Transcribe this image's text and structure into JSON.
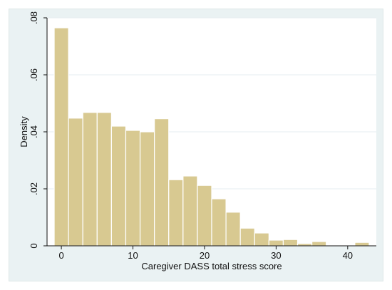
{
  "chart_data": {
    "type": "bar",
    "subtype": "histogram",
    "xlabel": "Caregiver DASS total stress score",
    "ylabel": "Density",
    "bin_width": 2,
    "bins": [
      {
        "x0": -1,
        "x1": 1,
        "density": 0.0765
      },
      {
        "x0": 1,
        "x1": 3,
        "density": 0.0448
      },
      {
        "x0": 3,
        "x1": 5,
        "density": 0.0468
      },
      {
        "x0": 5,
        "x1": 7,
        "density": 0.0468
      },
      {
        "x0": 7,
        "x1": 9,
        "density": 0.042
      },
      {
        "x0": 9,
        "x1": 11,
        "density": 0.0405
      },
      {
        "x0": 11,
        "x1": 13,
        "density": 0.04
      },
      {
        "x0": 13,
        "x1": 15,
        "density": 0.0446
      },
      {
        "x0": 15,
        "x1": 17,
        "density": 0.0232
      },
      {
        "x0": 17,
        "x1": 19,
        "density": 0.0245
      },
      {
        "x0": 19,
        "x1": 21,
        "density": 0.0212
      },
      {
        "x0": 21,
        "x1": 23,
        "density": 0.0165
      },
      {
        "x0": 23,
        "x1": 25,
        "density": 0.0118
      },
      {
        "x0": 25,
        "x1": 27,
        "density": 0.0062
      },
      {
        "x0": 27,
        "x1": 29,
        "density": 0.0045
      },
      {
        "x0": 29,
        "x1": 31,
        "density": 0.002
      },
      {
        "x0": 31,
        "x1": 33,
        "density": 0.0022
      },
      {
        "x0": 33,
        "x1": 35,
        "density": 0.0008
      },
      {
        "x0": 35,
        "x1": 37,
        "density": 0.0015
      },
      {
        "x0": 37,
        "x1": 39,
        "density": 0.0
      },
      {
        "x0": 39,
        "x1": 41,
        "density": 0.0
      },
      {
        "x0": 41,
        "x1": 43,
        "density": 0.0012
      }
    ],
    "xlim": [
      -2,
      44
    ],
    "ylim": [
      0,
      0.08
    ],
    "xticks": [
      0,
      10,
      20,
      30,
      40
    ],
    "xtick_labels": [
      "0",
      "10",
      "20",
      "30",
      "40"
    ],
    "yticks": [
      0,
      0.02,
      0.04,
      0.06,
      0.08
    ],
    "ytick_labels": [
      "0",
      ".02",
      ".04",
      ".06",
      ".08"
    ],
    "grid": "horizontal",
    "colors": {
      "bar_fill": "#d8c991",
      "bar_edge": "#ffffff",
      "plot_background": "#ffffff",
      "outer_background": "#eaf2f3",
      "grid": "#e6eef0",
      "axis": "#111111"
    }
  }
}
